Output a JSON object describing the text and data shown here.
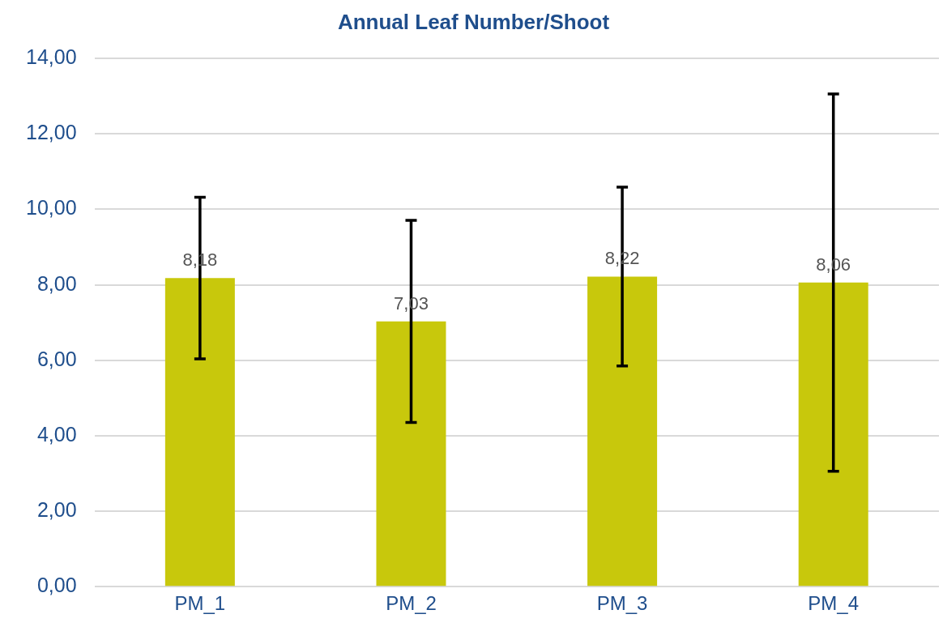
{
  "chart_data": {
    "type": "bar",
    "title": "Annual Leaf Number/Shoot",
    "categories": [
      "PM_1",
      "PM_2",
      "PM_3",
      "PM_4"
    ],
    "values": [
      8.18,
      7.03,
      8.22,
      8.06
    ],
    "value_labels": [
      "8,18",
      "7,03",
      "8,22",
      "8,06"
    ],
    "errors": [
      2.14,
      2.68,
      2.37,
      5.0
    ],
    "color": "#c8c80c",
    "ylim": [
      0,
      14
    ],
    "yticks": [
      {
        "value": 0,
        "label": "0,00"
      },
      {
        "value": 2,
        "label": "2,00"
      },
      {
        "value": 4,
        "label": "4,00"
      },
      {
        "value": 6,
        "label": "6,00"
      },
      {
        "value": 8,
        "label": "8,00"
      },
      {
        "value": 10,
        "label": "10,00"
      },
      {
        "value": 12,
        "label": "12,00"
      },
      {
        "value": 14,
        "label": "14,00"
      }
    ],
    "grid": "y",
    "legend": false
  }
}
